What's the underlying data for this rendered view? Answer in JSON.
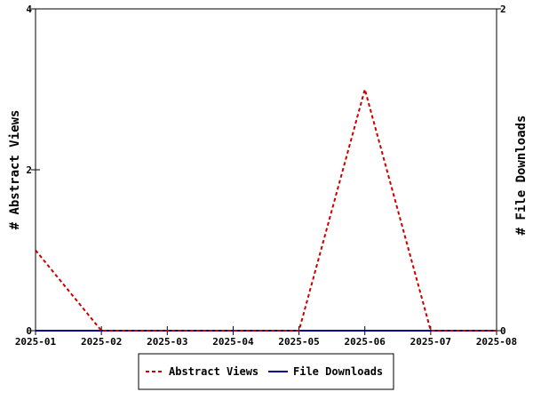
{
  "chart_data": {
    "type": "line",
    "x": [
      "2025-01",
      "2025-02",
      "2025-03",
      "2025-04",
      "2025-05",
      "2025-06",
      "2025-07",
      "2025-08"
    ],
    "ylabel_left": "# Abstract Views",
    "ylabel_right": "# File Downloads",
    "ylim_left": [
      0,
      4
    ],
    "ylim_right": [
      0,
      2
    ],
    "yticks_left": [
      0,
      2,
      4
    ],
    "yticks_right": [
      0,
      2
    ],
    "grid": false,
    "legend_position": "bottom",
    "series": [
      {
        "name": "Abstract Views",
        "axis": "left",
        "style": "dashed",
        "color": "#cc0000",
        "values": [
          1,
          0,
          0,
          0,
          0,
          3,
          0,
          0
        ]
      },
      {
        "name": "File Downloads",
        "axis": "right",
        "style": "solid",
        "color": "#000099",
        "values": [
          0,
          0,
          0,
          0,
          0,
          0,
          0,
          0
        ]
      }
    ]
  }
}
